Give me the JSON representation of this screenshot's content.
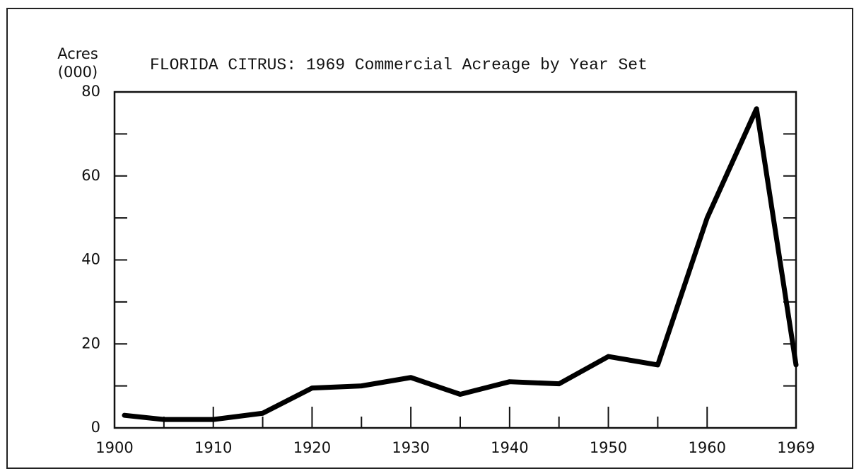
{
  "chart_data": {
    "type": "line",
    "title": "FLORIDA CITRUS:  1969 Commercial Acreage by Year Set",
    "y_label": [
      "Acres",
      "(000)"
    ],
    "x": [
      1901,
      1905,
      1910,
      1915,
      1920,
      1925,
      1930,
      1935,
      1940,
      1945,
      1950,
      1955,
      1960,
      1965,
      1969
    ],
    "values": [
      3,
      2,
      2,
      3.5,
      9.5,
      10,
      12,
      8,
      11,
      10.5,
      17,
      15,
      50,
      76,
      15
    ],
    "color": "#000000",
    "xlim": [
      1900,
      1969
    ],
    "xticks": [
      1900,
      1910,
      1920,
      1930,
      1940,
      1950,
      1960,
      1969
    ],
    "x_minor_ticks": [
      1905,
      1915,
      1925,
      1935,
      1945,
      1955
    ],
    "ylim": [
      0,
      80
    ],
    "yticks": [
      0,
      20,
      40,
      60,
      80
    ],
    "y_minor_ticks": [
      10,
      30,
      50,
      70
    ],
    "grid": false
  }
}
